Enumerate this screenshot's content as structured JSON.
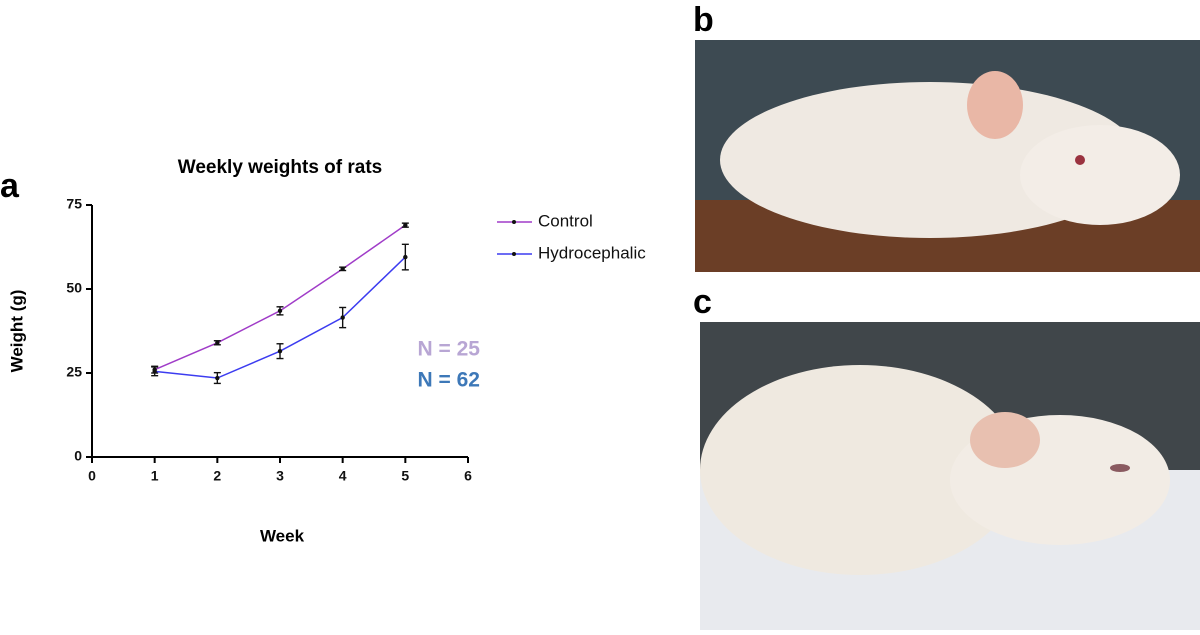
{
  "panel_labels": [
    "a",
    "b",
    "c"
  ],
  "chart_data": {
    "type": "line",
    "title": "Weekly weights of rats",
    "x_label": "Week",
    "y_label": "Weight (g)",
    "x": [
      1,
      2,
      3,
      4,
      5
    ],
    "series": [
      {
        "name": "Control",
        "color": "#a03cc8",
        "values": [
          26,
          34,
          43.5,
          56,
          69
        ],
        "errors": [
          1,
          0.6,
          1.2,
          0.5,
          0.6
        ]
      },
      {
        "name": "Hydrocephalic",
        "color": "#3c3cf0",
        "values": [
          25.5,
          23.5,
          31.5,
          41.5,
          59.5
        ],
        "errors": [
          1.3,
          1.6,
          2.2,
          3,
          3.8
        ]
      }
    ],
    "xlim": [
      0,
      6
    ],
    "xticks": [
      0,
      1,
      2,
      3,
      4,
      5,
      6
    ],
    "ylim": [
      0,
      75
    ],
    "yticks": [
      0,
      25,
      50,
      75
    ],
    "grid": false,
    "legend": "right",
    "annotations": [
      {
        "text": "N = 25",
        "color": "#b8a6d4"
      },
      {
        "text": "N = 62",
        "color": "#3d78b8"
      }
    ]
  }
}
